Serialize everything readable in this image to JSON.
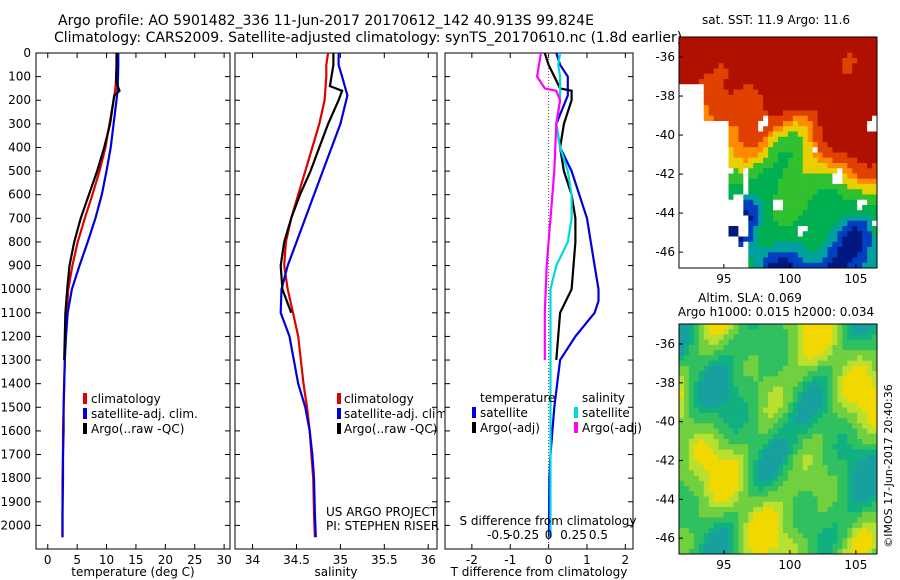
{
  "title_line1": "Argo profile: AO 5901482_336 11-Jun-2017 20170612_142 40.913S 99.824E",
  "title_line2": "Climatology: CARS2009. Satellite-adjusted climatology: synTS_20170610.nc (1.8d earlier)",
  "sst_title": "sat. SST: 11.9 Argo: 11.6",
  "sla_title1": "Altim. SLA: 0.069",
  "sla_title2": "Argo h1000: 0.015 h2000: 0.034",
  "side_label": "©IMOS 17-Jun-2017 20:40:36",
  "project_line1": "US ARGO PROJECT",
  "project_line2": "PI: STEPHEN RISER",
  "colors": {
    "climatology": "#e00000",
    "satellite": "#0000dd",
    "argo": "#000000",
    "cyan": "#00d8e0",
    "magenta": "#ff00ff"
  },
  "chart_data": [
    {
      "type": "line",
      "xlabel": "temperature (deg C)",
      "xlim": [
        -2,
        31
      ],
      "ylim": [
        2100,
        0
      ],
      "xticks": [
        "0",
        "5",
        "10",
        "15",
        "20",
        "25",
        "30"
      ],
      "yticks": [
        "0",
        "100",
        "200",
        "300",
        "400",
        "500",
        "600",
        "700",
        "800",
        "900",
        "1000",
        "1100",
        "1200",
        "1300",
        "1400",
        "1500",
        "1600",
        "1700",
        "1800",
        "1900",
        "2000"
      ],
      "legend": [
        "climatology",
        "satellite-adj. clim.",
        "Argo(..raw -QC)"
      ],
      "series": [
        {
          "name": "climatology",
          "color": "#e00000",
          "x": [
            11.8,
            11.8,
            11.5,
            11.2,
            10.5,
            9.8,
            8.8,
            7.6,
            6.3,
            5.1,
            4.2,
            3.5,
            3.2,
            3.0,
            2.9,
            2.8,
            2.7,
            2.6,
            2.6,
            2.5,
            2.5,
            2.5
          ],
          "y": [
            0,
            50,
            150,
            200,
            300,
            400,
            500,
            600,
            700,
            800,
            900,
            1000,
            1100,
            1200,
            1300,
            1400,
            1500,
            1600,
            1700,
            1800,
            1950,
            2050
          ]
        },
        {
          "name": "satellite-adj. clim.",
          "color": "#0000dd",
          "x": [
            12.0,
            12.0,
            11.9,
            11.7,
            11.2,
            10.7,
            10.0,
            9.2,
            8.1,
            6.8,
            5.4,
            4.1,
            3.4,
            3.1,
            2.9,
            2.8,
            2.7,
            2.7,
            2.6,
            2.6,
            2.5,
            2.5
          ],
          "y": [
            0,
            50,
            150,
            200,
            300,
            400,
            500,
            600,
            700,
            800,
            900,
            1000,
            1100,
            1200,
            1300,
            1400,
            1500,
            1600,
            1700,
            1800,
            1950,
            2050
          ]
        },
        {
          "name": "Argo(..raw -QC)",
          "color": "#000000",
          "x": [
            11.7,
            11.7,
            11.6,
            12.2,
            11.3,
            10.6,
            9.6,
            8.4,
            7.0,
            5.6,
            4.5,
            3.7,
            3.3,
            3.0,
            2.9,
            2.8
          ],
          "y": [
            0,
            50,
            120,
            160,
            180,
            300,
            400,
            500,
            600,
            700,
            800,
            900,
            1000,
            1100,
            1200,
            1300
          ]
        }
      ]
    },
    {
      "type": "line",
      "xlabel": "salinity",
      "xlim": [
        33.8,
        36.1
      ],
      "ylim": [
        2100,
        0
      ],
      "xticks": [
        "34",
        "34.5",
        "35",
        "35.5",
        "36"
      ],
      "legend": [
        "climatology",
        "satellite-adj. clim.",
        "Argo(..raw -QC)"
      ],
      "series": [
        {
          "name": "climatology",
          "color": "#e00000",
          "x": [
            34.86,
            34.84,
            34.84,
            34.82,
            34.76,
            34.68,
            34.6,
            34.52,
            34.44,
            34.38,
            34.36,
            34.4,
            34.46,
            34.52,
            34.58,
            34.62,
            34.65,
            34.67,
            34.69,
            34.7,
            34.71
          ],
          "y": [
            0,
            50,
            100,
            200,
            300,
            400,
            500,
            600,
            700,
            800,
            900,
            1000,
            1100,
            1200,
            1400,
            1500,
            1600,
            1700,
            1800,
            1950,
            2050
          ]
        },
        {
          "name": "satellite-adj. clim.",
          "color": "#0000dd",
          "x": [
            34.98,
            34.98,
            35.02,
            35.08,
            35.0,
            34.9,
            34.8,
            34.7,
            34.6,
            34.5,
            34.4,
            34.33,
            34.32,
            34.42,
            34.52,
            34.6,
            34.65,
            34.68,
            34.7,
            34.71,
            34.72
          ],
          "y": [
            0,
            50,
            100,
            180,
            300,
            400,
            500,
            600,
            700,
            800,
            900,
            1000,
            1100,
            1200,
            1400,
            1500,
            1600,
            1700,
            1800,
            1950,
            2050
          ]
        },
        {
          "name": "Argo(..raw -QC)",
          "color": "#000000",
          "x": [
            34.92,
            34.92,
            34.88,
            35.02,
            34.98,
            34.86,
            34.76,
            34.66,
            34.54,
            34.44,
            34.36,
            34.32,
            34.34,
            34.44
          ],
          "y": [
            0,
            50,
            140,
            160,
            200,
            300,
            400,
            500,
            600,
            700,
            800,
            900,
            1000,
            1100
          ]
        }
      ]
    },
    {
      "type": "line",
      "xlabel": "T difference from climatology",
      "xlabel_top": "S difference from climatology",
      "xlim": [
        -2.7,
        2.2
      ],
      "ylim": [
        2100,
        0
      ],
      "xticks": [
        "-2",
        "-1",
        "0",
        "1",
        "2"
      ],
      "xticks_top": [
        "-0.5",
        "-0.25",
        "0",
        "0.25",
        "0.5"
      ],
      "legend_groups": [
        {
          "heading": "temperature",
          "items": [
            "satellite",
            "Argo(-adj)"
          ]
        },
        {
          "heading": "salinity",
          "items": [
            "satellite",
            "Argo(-adj)"
          ]
        }
      ],
      "series": [
        {
          "name": "satellite",
          "color": "#0000dd",
          "x": [
            0.2,
            0.3,
            0.5,
            0.5,
            0.2,
            0.3,
            0.6,
            0.8,
            1.0,
            1.1,
            1.2,
            1.3,
            1.3,
            1.2,
            0.7,
            0.3,
            0.15,
            0.1,
            0.05,
            0.02,
            0.01
          ],
          "y": [
            0,
            50,
            100,
            180,
            300,
            400,
            500,
            600,
            700,
            800,
            900,
            1000,
            1050,
            1100,
            1200,
            1300,
            1500,
            1600,
            1700,
            1800,
            2050
          ]
        },
        {
          "name": "Argo(-adj)",
          "color": "#000000",
          "x": [
            -0.1,
            0.0,
            0.3,
            0.6,
            0.6,
            0.4,
            0.3,
            0.4,
            0.6,
            0.7,
            0.7,
            0.6,
            0.3,
            0.2
          ],
          "y": [
            0,
            50,
            150,
            160,
            200,
            300,
            400,
            500,
            600,
            700,
            800,
            1000,
            1100,
            1300
          ]
        },
        {
          "name": "salinity satellite",
          "color": "#00d8e0",
          "x": [
            0.3,
            0.25,
            0.3,
            0.3,
            0.2,
            0.3,
            0.5,
            0.6,
            0.6,
            0.5,
            0.2,
            0.05,
            0.05,
            0.05,
            0.05,
            0.05
          ],
          "y": [
            0,
            50,
            100,
            200,
            300,
            400,
            500,
            600,
            700,
            800,
            900,
            1000,
            1200,
            1500,
            1800,
            2050
          ]
        },
        {
          "name": "salinity Argo(-adj)",
          "color": "#ff00ff",
          "x": [
            -0.2,
            -0.3,
            -0.1,
            0.2,
            0.3,
            0.2,
            0.15,
            0.05,
            -0.05,
            -0.1,
            -0.1
          ],
          "y": [
            0,
            100,
            150,
            160,
            200,
            300,
            500,
            700,
            900,
            1100,
            1300
          ]
        }
      ]
    },
    {
      "type": "heatmap",
      "title": "sat. SST: 11.9 Argo: 11.6",
      "xticks": [
        "95",
        "100",
        "105"
      ],
      "yticks": [
        "-36",
        "-38",
        "-40",
        "-42",
        "-44",
        "-46"
      ]
    },
    {
      "type": "heatmap",
      "title": "Altim. SLA: 0.069 / Argo h1000: 0.015 h2000: 0.034",
      "xticks": [
        "95",
        "100",
        "105"
      ],
      "yticks": [
        "-36",
        "-38",
        "-40",
        "-42",
        "-44",
        "-46"
      ]
    }
  ]
}
